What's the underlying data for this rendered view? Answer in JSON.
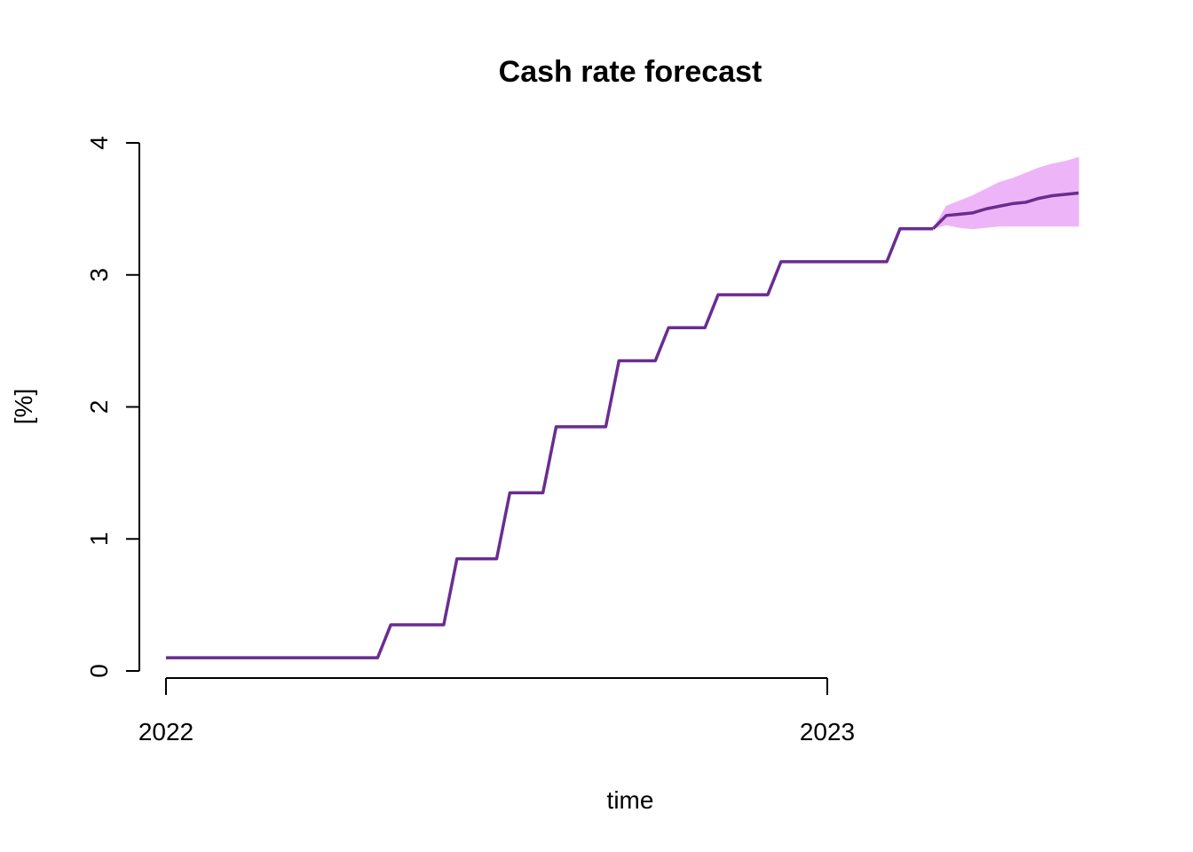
{
  "chart_data": {
    "type": "line",
    "title": "Cash rate forecast",
    "xlabel": "time",
    "ylabel": "[%]",
    "xlim": [
      2022.0,
      2023.4
    ],
    "ylim": [
      0,
      4
    ],
    "x_ticks": [
      {
        "value": 2022.0,
        "label": "2022"
      },
      {
        "value": 2023.0,
        "label": "2023"
      }
    ],
    "y_ticks": [
      {
        "value": 0,
        "label": "0"
      },
      {
        "value": 1,
        "label": "1"
      },
      {
        "value": 2,
        "label": "2"
      },
      {
        "value": 3,
        "label": "3"
      },
      {
        "value": 4,
        "label": "4"
      }
    ],
    "grid": false,
    "colors": {
      "line": "#6A2C91",
      "band": "#EDB5F7",
      "axis": "#000000"
    },
    "series": [
      {
        "values_type": "history",
        "x": [
          2022.0,
          2022.32,
          2022.34,
          2022.42,
          2022.44,
          2022.5,
          2022.52,
          2022.57,
          2022.59,
          2022.665,
          2022.685,
          2022.74,
          2022.76,
          2022.815,
          2022.835,
          2022.91,
          2022.93,
          2023.09,
          2023.11,
          2023.16
        ],
        "y": [
          0.1,
          0.1,
          0.35,
          0.35,
          0.85,
          0.85,
          1.35,
          1.35,
          1.85,
          1.85,
          2.35,
          2.35,
          2.6,
          2.6,
          2.85,
          2.85,
          3.1,
          3.1,
          3.35,
          3.35
        ]
      },
      {
        "values_type": "forecast",
        "x": [
          2023.16,
          2023.18,
          2023.2,
          2023.22,
          2023.24,
          2023.26,
          2023.28,
          2023.3,
          2023.32,
          2023.34,
          2023.36,
          2023.38
        ],
        "y": [
          3.35,
          3.45,
          3.46,
          3.47,
          3.5,
          3.52,
          3.54,
          3.55,
          3.58,
          3.6,
          3.61,
          3.62
        ],
        "lower": [
          3.35,
          3.38,
          3.36,
          3.35,
          3.36,
          3.37,
          3.37,
          3.37,
          3.37,
          3.37,
          3.37,
          3.37
        ],
        "upper": [
          3.35,
          3.52,
          3.56,
          3.6,
          3.65,
          3.7,
          3.73,
          3.77,
          3.81,
          3.84,
          3.86,
          3.89
        ]
      }
    ]
  }
}
